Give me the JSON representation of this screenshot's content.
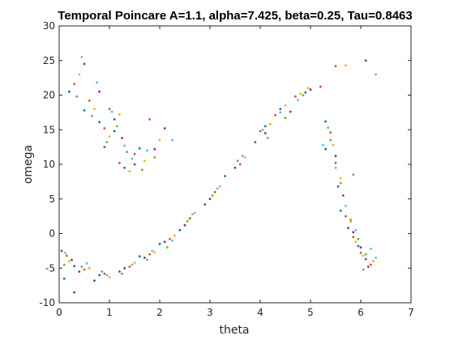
{
  "chart_data": {
    "type": "scatter",
    "title": "Temporal Poincare A=1.1, alpha=7.425, beta=0.25, Tau=0.8463",
    "xlabel": "theta",
    "ylabel": "omega",
    "xlim": [
      0,
      7
    ],
    "ylim": [
      -10,
      30
    ],
    "xticks": [
      "0",
      "1",
      "2",
      "3",
      "4",
      "5",
      "6",
      "7"
    ],
    "yticks": [
      "-10",
      "-5",
      "0",
      "5",
      "10",
      "15",
      "20",
      "25",
      "30"
    ],
    "grid": false,
    "series": [
      {
        "color": "#0072BD",
        "points": [
          [
            0.2,
            20.5
          ],
          [
            0.5,
            17.8
          ],
          [
            0.8,
            16.1
          ],
          [
            0.9,
            12.5
          ],
          [
            1.1,
            14.8
          ],
          [
            1.3,
            9.5
          ],
          [
            1.6,
            12.3
          ],
          [
            0.05,
            -2.5
          ],
          [
            0.3,
            -4.7
          ],
          [
            0.8,
            -6.0
          ],
          [
            1.2,
            -5.5
          ],
          [
            1.6,
            -3.3
          ],
          [
            2.0,
            -1.5
          ],
          [
            2.4,
            0.5
          ],
          [
            2.9,
            4.2
          ],
          [
            3.3,
            8.3
          ],
          [
            3.9,
            13.2
          ],
          [
            4.1,
            15.5
          ],
          [
            4.4,
            18.0
          ],
          [
            4.9,
            20.4
          ],
          [
            5.3,
            16.2
          ],
          [
            5.55,
            6.8
          ],
          [
            5.6,
            3.3
          ],
          [
            5.75,
            0.8
          ],
          [
            5.95,
            -1.8
          ],
          [
            6.1,
            -3.7
          ],
          [
            0.1,
            -6.5
          ],
          [
            5.3,
            12.2
          ]
        ]
      },
      {
        "color": "#D95319",
        "points": [
          [
            0.3,
            21.6
          ],
          [
            0.6,
            19.2
          ],
          [
            0.9,
            15.2
          ],
          [
            1.0,
            18.0
          ],
          [
            1.2,
            10.2
          ],
          [
            1.5,
            11.5
          ],
          [
            1.8,
            16.5
          ],
          [
            0.15,
            -3.2
          ],
          [
            0.5,
            -5.2
          ],
          [
            0.9,
            -5.8
          ],
          [
            1.4,
            -4.8
          ],
          [
            1.8,
            -3.0
          ],
          [
            2.2,
            -0.8
          ],
          [
            2.6,
            2.2
          ],
          [
            3.1,
            6.0
          ],
          [
            3.6,
            10.0
          ],
          [
            4.0,
            14.8
          ],
          [
            4.3,
            17.1
          ],
          [
            4.7,
            19.8
          ],
          [
            5.4,
            14.6
          ],
          [
            5.5,
            10.2
          ],
          [
            5.7,
            2.5
          ],
          [
            5.85,
            -0.5
          ],
          [
            6.0,
            -2.8
          ],
          [
            6.2,
            -4.5
          ],
          [
            5.2,
            21.2
          ],
          [
            5.5,
            24.2
          ]
        ]
      },
      {
        "color": "#EDB120",
        "points": [
          [
            0.4,
            23.0
          ],
          [
            0.7,
            18.0
          ],
          [
            1.0,
            14.0
          ],
          [
            1.2,
            17.2
          ],
          [
            1.4,
            9.0
          ],
          [
            1.7,
            10.5
          ],
          [
            2.0,
            13.5
          ],
          [
            0.2,
            -4.0
          ],
          [
            0.6,
            -5.0
          ],
          [
            1.0,
            -6.3
          ],
          [
            1.5,
            -4.2
          ],
          [
            1.9,
            -2.7
          ],
          [
            2.3,
            -0.3
          ],
          [
            2.7,
            3.0
          ],
          [
            3.2,
            6.8
          ],
          [
            3.7,
            11.0
          ],
          [
            4.2,
            15.8
          ],
          [
            4.5,
            18.5
          ],
          [
            4.8,
            20.2
          ],
          [
            5.45,
            12.8
          ],
          [
            5.6,
            8.0
          ],
          [
            5.8,
            1.7
          ],
          [
            5.9,
            -1.2
          ],
          [
            6.05,
            -3.2
          ],
          [
            6.25,
            -4.0
          ],
          [
            5.7,
            24.3
          ],
          [
            4.95,
            21.0
          ]
        ]
      },
      {
        "color": "#7E2F8E",
        "points": [
          [
            0.5,
            24.5
          ],
          [
            0.8,
            20.5
          ],
          [
            1.1,
            16.5
          ],
          [
            1.25,
            13.8
          ],
          [
            1.5,
            10.0
          ],
          [
            1.9,
            12.2
          ],
          [
            2.1,
            15.2
          ],
          [
            0.25,
            -3.8
          ],
          [
            0.4,
            -5.5
          ],
          [
            0.7,
            -6.8
          ],
          [
            1.3,
            -5.0
          ],
          [
            1.7,
            -3.5
          ],
          [
            2.1,
            -1.2
          ],
          [
            2.5,
            1.2
          ],
          [
            3.0,
            5.0
          ],
          [
            3.5,
            9.5
          ],
          [
            4.1,
            14.5
          ],
          [
            4.6,
            17.6
          ],
          [
            5.0,
            20.8
          ],
          [
            5.5,
            11.2
          ],
          [
            5.65,
            5.5
          ],
          [
            5.85,
            0.2
          ],
          [
            6.0,
            -2.0
          ],
          [
            6.15,
            -4.8
          ],
          [
            0.3,
            -8.5
          ],
          [
            6.1,
            25.0
          ]
        ]
      },
      {
        "color": "#77AC30",
        "points": [
          [
            0.35,
            19.8
          ],
          [
            0.65,
            17.0
          ],
          [
            0.95,
            13.2
          ],
          [
            1.15,
            15.5
          ],
          [
            1.35,
            11.8
          ],
          [
            1.65,
            9.2
          ],
          [
            1.9,
            11.0
          ],
          [
            0.1,
            -4.5
          ],
          [
            0.45,
            -4.8
          ],
          [
            0.85,
            -5.5
          ],
          [
            1.25,
            -5.8
          ],
          [
            1.75,
            -3.8
          ],
          [
            2.15,
            -2.0
          ],
          [
            2.55,
            1.8
          ],
          [
            3.05,
            5.5
          ],
          [
            3.55,
            10.5
          ],
          [
            4.15,
            13.8
          ],
          [
            4.5,
            16.7
          ],
          [
            4.85,
            20.0
          ],
          [
            5.4,
            13.5
          ],
          [
            5.6,
            7.3
          ],
          [
            5.8,
            2.0
          ],
          [
            5.95,
            -0.8
          ],
          [
            6.1,
            -3.0
          ],
          [
            6.05,
            -5.2
          ],
          [
            5.85,
            8.5
          ]
        ]
      },
      {
        "color": "#4DBEEE",
        "points": [
          [
            0.45,
            25.5
          ],
          [
            0.75,
            21.8
          ],
          [
            1.05,
            17.6
          ],
          [
            1.3,
            12.7
          ],
          [
            1.45,
            10.8
          ],
          [
            1.75,
            12.0
          ],
          [
            2.25,
            13.5
          ],
          [
            0.12,
            -2.8
          ],
          [
            0.55,
            -4.3
          ],
          [
            0.95,
            -6.0
          ],
          [
            1.45,
            -4.5
          ],
          [
            1.85,
            -2.5
          ],
          [
            2.25,
            -1.0
          ],
          [
            2.65,
            2.8
          ],
          [
            3.15,
            6.5
          ],
          [
            3.65,
            11.2
          ],
          [
            4.05,
            15.0
          ],
          [
            4.4,
            17.5
          ],
          [
            4.75,
            19.3
          ],
          [
            5.35,
            15.3
          ],
          [
            5.5,
            9.5
          ],
          [
            5.7,
            4.0
          ],
          [
            5.9,
            0.5
          ],
          [
            6.2,
            -2.2
          ],
          [
            6.3,
            -3.5
          ],
          [
            6.3,
            23.0
          ],
          [
            5.25,
            12.8
          ]
        ]
      }
    ]
  }
}
